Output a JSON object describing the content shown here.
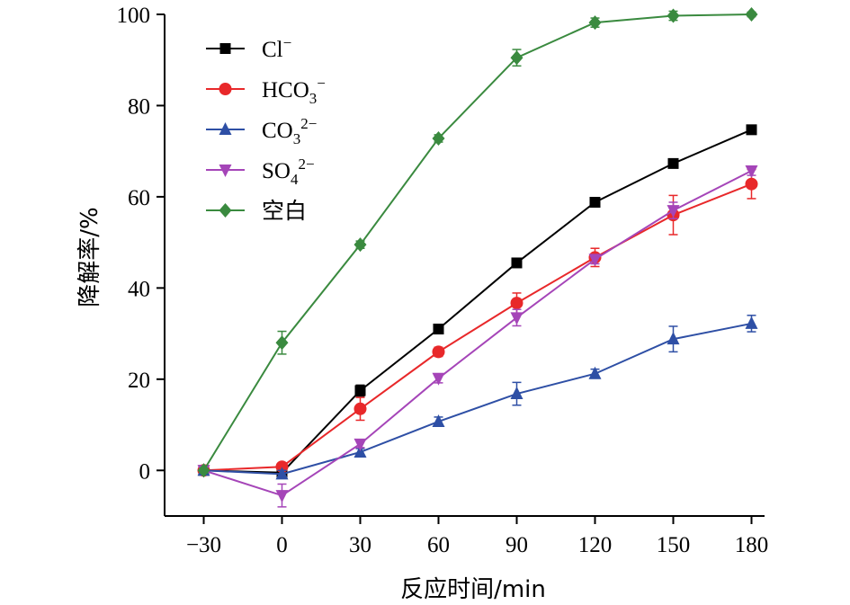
{
  "chart_data": {
    "type": "line",
    "title": "",
    "xlabel": "反应时间/min",
    "ylabel": "降解率/%",
    "x": [
      -30,
      0,
      30,
      60,
      90,
      120,
      150,
      180
    ],
    "x_tick_labels": [
      "−30",
      "0",
      "30",
      "60",
      "90",
      "120",
      "150",
      "180"
    ],
    "y_ticks": [
      0,
      20,
      40,
      60,
      80,
      100
    ],
    "y_tick_labels": [
      "0",
      "20",
      "40",
      "60",
      "80",
      "100"
    ],
    "xlim": [
      -45,
      185
    ],
    "ylim": [
      -10,
      100
    ],
    "grid": false,
    "legend_position": "top-left",
    "series": [
      {
        "name": "Cl⁻",
        "legend": {
          "base": "Cl",
          "sub": "",
          "sup": "−"
        },
        "color": "#000000",
        "marker": "square",
        "values": [
          0,
          -0.5,
          17.5,
          31,
          45.5,
          58.8,
          67.3,
          74.7
        ],
        "errors": [
          0.5,
          0.8,
          1.2,
          0.8,
          0.8,
          0.8,
          0.8,
          0.8
        ]
      },
      {
        "name": "HCO₃⁻",
        "legend": {
          "base": "HCO",
          "sub": "3",
          "sup": "−"
        },
        "color": "#e8282a",
        "marker": "circle",
        "values": [
          0,
          0.8,
          13.5,
          26,
          36.7,
          46.7,
          56,
          62.8
        ],
        "errors": [
          0.5,
          0.8,
          2.5,
          1.0,
          2.2,
          2.0,
          4.3,
          3.2
        ]
      },
      {
        "name": "CO₃²⁻",
        "legend": {
          "base": "CO",
          "sub": "3",
          "sup": "2−"
        },
        "color": "#2e4fa5",
        "marker": "triangle-up",
        "values": [
          0,
          -0.8,
          4,
          10.7,
          16.8,
          21.2,
          28.8,
          32.2
        ],
        "errors": [
          0.5,
          0.8,
          0.8,
          1.0,
          2.5,
          1.0,
          2.8,
          1.8
        ]
      },
      {
        "name": "SO₄²⁻",
        "legend": {
          "base": "SO",
          "sub": "4",
          "sup": "2−"
        },
        "color": "#a545b8",
        "marker": "triangle-down",
        "values": [
          0,
          -5.5,
          5.8,
          20.2,
          33.5,
          46.3,
          57,
          65.7
        ],
        "errors": [
          0.5,
          2.5,
          0.8,
          1.0,
          1.8,
          1.0,
          1.8,
          1.0
        ]
      },
      {
        "name": "空白",
        "legend": {
          "base": "空白",
          "sub": "",
          "sup": ""
        },
        "color": "#3a8a3f",
        "marker": "diamond",
        "values": [
          0,
          28,
          49.5,
          72.8,
          90.5,
          98.2,
          99.7,
          100
        ],
        "errors": [
          0.5,
          2.5,
          0.8,
          0.8,
          1.8,
          1.0,
          1.0,
          0.5
        ]
      }
    ]
  }
}
